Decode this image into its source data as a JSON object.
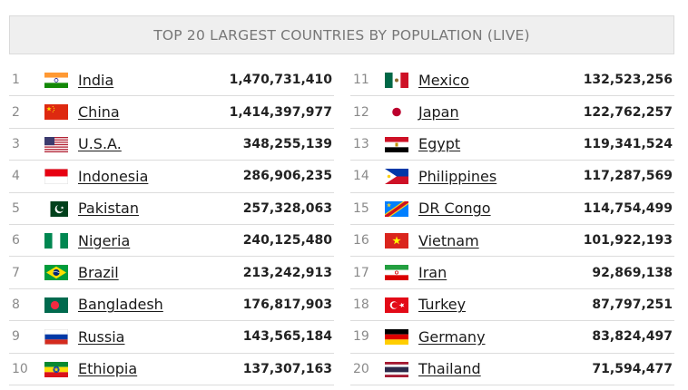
{
  "title": "TOP 20 LARGEST COUNTRIES BY POPULATION (LIVE)",
  "rows": [
    {
      "rank": "1",
      "country": "India",
      "population": "1,470,731,410",
      "flag": "india-flag-icon"
    },
    {
      "rank": "2",
      "country": "China",
      "population": "1,414,397,977",
      "flag": "china-flag-icon"
    },
    {
      "rank": "3",
      "country": "U.S.A.",
      "population": "348,255,139",
      "flag": "usa-flag-icon"
    },
    {
      "rank": "4",
      "country": "Indonesia",
      "population": "286,906,235",
      "flag": "indonesia-flag-icon"
    },
    {
      "rank": "5",
      "country": "Pakistan",
      "population": "257,328,063",
      "flag": "pakistan-flag-icon"
    },
    {
      "rank": "6",
      "country": "Nigeria",
      "population": "240,125,480",
      "flag": "nigeria-flag-icon"
    },
    {
      "rank": "7",
      "country": "Brazil",
      "population": "213,242,913",
      "flag": "brazil-flag-icon"
    },
    {
      "rank": "8",
      "country": "Bangladesh",
      "population": "176,817,903",
      "flag": "bangladesh-flag-icon"
    },
    {
      "rank": "9",
      "country": "Russia",
      "population": "143,565,184",
      "flag": "russia-flag-icon"
    },
    {
      "rank": "10",
      "country": "Ethiopia",
      "population": "137,307,163",
      "flag": "ethiopia-flag-icon"
    },
    {
      "rank": "11",
      "country": "Mexico",
      "population": "132,523,256",
      "flag": "mexico-flag-icon"
    },
    {
      "rank": "12",
      "country": "Japan",
      "population": "122,762,257",
      "flag": "japan-flag-icon"
    },
    {
      "rank": "13",
      "country": "Egypt",
      "population": "119,341,524",
      "flag": "egypt-flag-icon"
    },
    {
      "rank": "14",
      "country": "Philippines",
      "population": "117,287,569",
      "flag": "philippines-flag-icon"
    },
    {
      "rank": "15",
      "country": "DR Congo",
      "population": "114,754,499",
      "flag": "dr-congo-flag-icon"
    },
    {
      "rank": "16",
      "country": "Vietnam",
      "population": "101,922,193",
      "flag": "vietnam-flag-icon"
    },
    {
      "rank": "17",
      "country": "Iran",
      "population": "92,869,138",
      "flag": "iran-flag-icon"
    },
    {
      "rank": "18",
      "country": "Turkey",
      "population": "87,797,251",
      "flag": "turkey-flag-icon"
    },
    {
      "rank": "19",
      "country": "Germany",
      "population": "83,824,497",
      "flag": "germany-flag-icon"
    },
    {
      "rank": "20",
      "country": "Thailand",
      "population": "71,594,477",
      "flag": "thailand-flag-icon"
    }
  ]
}
